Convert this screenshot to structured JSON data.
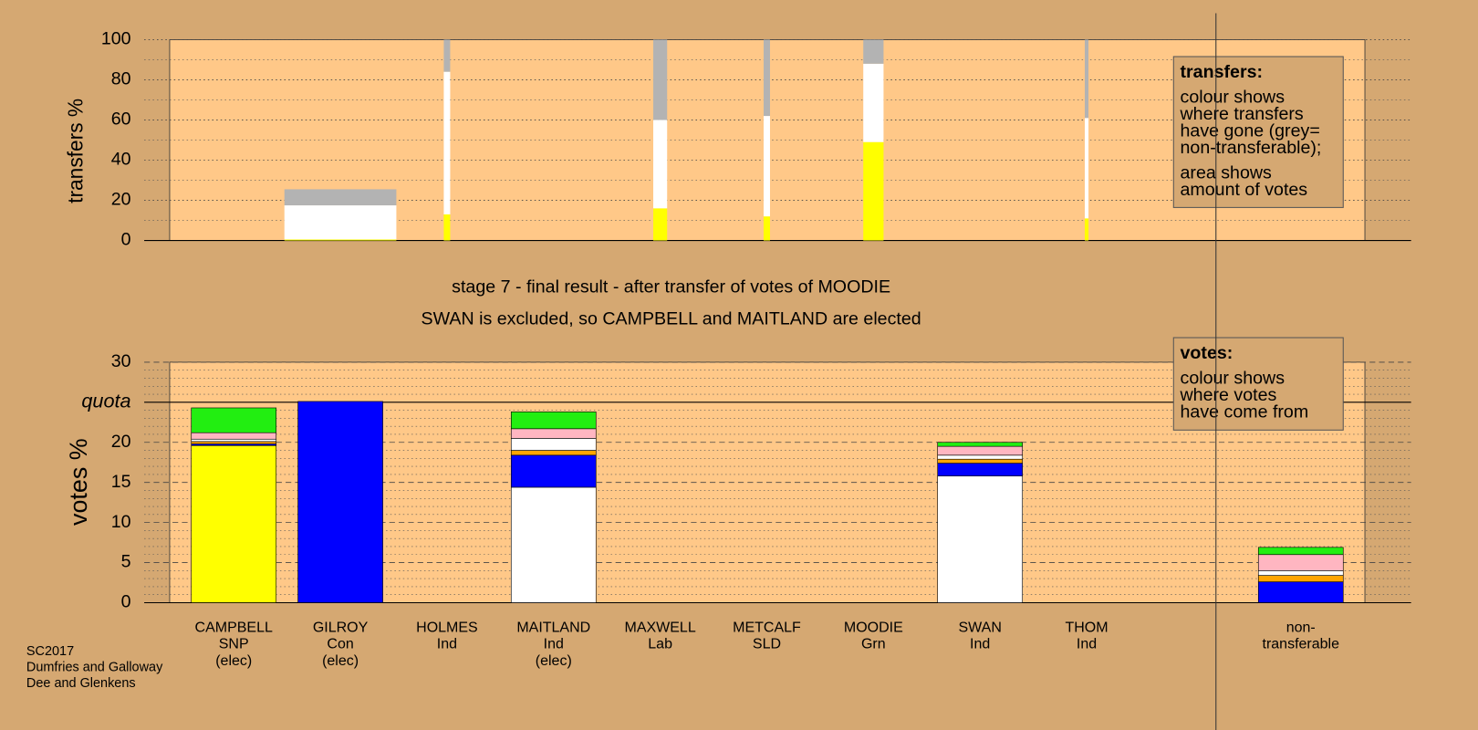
{
  "chart_data": [
    {
      "type": "bar",
      "stacked": true,
      "ylabel": "transfers %",
      "ylim": [
        0,
        100
      ],
      "yticks": [
        0,
        20,
        40,
        60,
        80,
        100
      ],
      "minor_step": 10,
      "grid_style": "dotted",
      "widths": [
        null,
        1.05,
        0.06,
        null,
        0.13,
        0.06,
        0.19,
        null,
        0.035,
        null
      ],
      "series": [
        {
          "color": "#ffff00",
          "values": [
            null,
            0.5,
            13,
            null,
            16,
            12,
            49,
            null,
            11,
            null
          ]
        },
        {
          "color": "#ffffff",
          "values": [
            null,
            17,
            71,
            null,
            44,
            50,
            39,
            null,
            50,
            null
          ]
        },
        {
          "color": "#b3b3b3",
          "values": [
            null,
            8,
            16,
            null,
            40,
            38,
            12,
            null,
            39,
            null
          ]
        }
      ],
      "legend_title": "transfers:",
      "legend_text": [
        [
          "colour shows",
          "where transfers",
          "have gone (grey=",
          "non-transferable);"
        ],
        [
          "area shows",
          "amount of votes"
        ]
      ]
    },
    {
      "type": "bar",
      "stacked": true,
      "title": [
        "stage 7 - final result - after transfer of votes of MOODIE",
        "SWAN is excluded, so CAMPBELL and MAITLAND are elected"
      ],
      "ylabel": "votes %",
      "ylim": [
        0,
        30
      ],
      "yticks": [
        0,
        5,
        10,
        15,
        20,
        {
          "value": 25,
          "label": "quota"
        },
        30
      ],
      "minor_step": 1,
      "grid_style": "dashed",
      "categories": [
        [
          "CAMPBELL",
          "SNP",
          "(elec)"
        ],
        [
          "GILROY",
          "Con",
          "(elec)"
        ],
        [
          "HOLMES",
          "Ind"
        ],
        [
          "MAITLAND",
          "Ind",
          "(elec)"
        ],
        [
          "MAXWELL",
          "Lab"
        ],
        [
          "METCALF",
          "SLD"
        ],
        [
          "MOODIE",
          "Grn"
        ],
        [
          "SWAN",
          "Ind"
        ],
        [
          "THOM",
          "Ind"
        ],
        [
          "non-",
          "transferable"
        ]
      ],
      "series": [
        {
          "color": "#ffff00",
          "values": [
            19.6,
            0,
            0,
            0,
            0,
            0,
            0,
            0,
            0,
            0
          ]
        },
        {
          "color": "#ffffff",
          "values": [
            0,
            0,
            0,
            14.4,
            0,
            0,
            0,
            15.8,
            0,
            0
          ]
        },
        {
          "color": "#0000ff",
          "values": [
            0.2,
            25.1,
            0,
            4.0,
            0,
            0,
            0,
            1.6,
            0,
            2.6
          ]
        },
        {
          "color": "#ffa500",
          "values": [
            0.3,
            0,
            0,
            0.6,
            0,
            0,
            0,
            0.5,
            0,
            0.8
          ]
        },
        {
          "color": "#ffffff",
          "values": [
            0.3,
            0,
            0,
            1.5,
            0,
            0,
            0,
            0.5,
            0,
            0.6
          ]
        },
        {
          "color": "#ffb6c1",
          "values": [
            0.8,
            0,
            0,
            1.2,
            0,
            0,
            0,
            1.1,
            0,
            2.0
          ]
        },
        {
          "color": "#22ee11",
          "values": [
            3.1,
            0,
            0,
            2.1,
            0,
            0,
            0,
            0.5,
            0,
            0.9
          ]
        }
      ],
      "legend_title": "votes:",
      "legend_text": [
        [
          "colour shows",
          "where votes",
          "have come from"
        ]
      ]
    }
  ],
  "footer": [
    "SC2017",
    "Dumfries and Galloway",
    "Dee and Glenkens"
  ]
}
